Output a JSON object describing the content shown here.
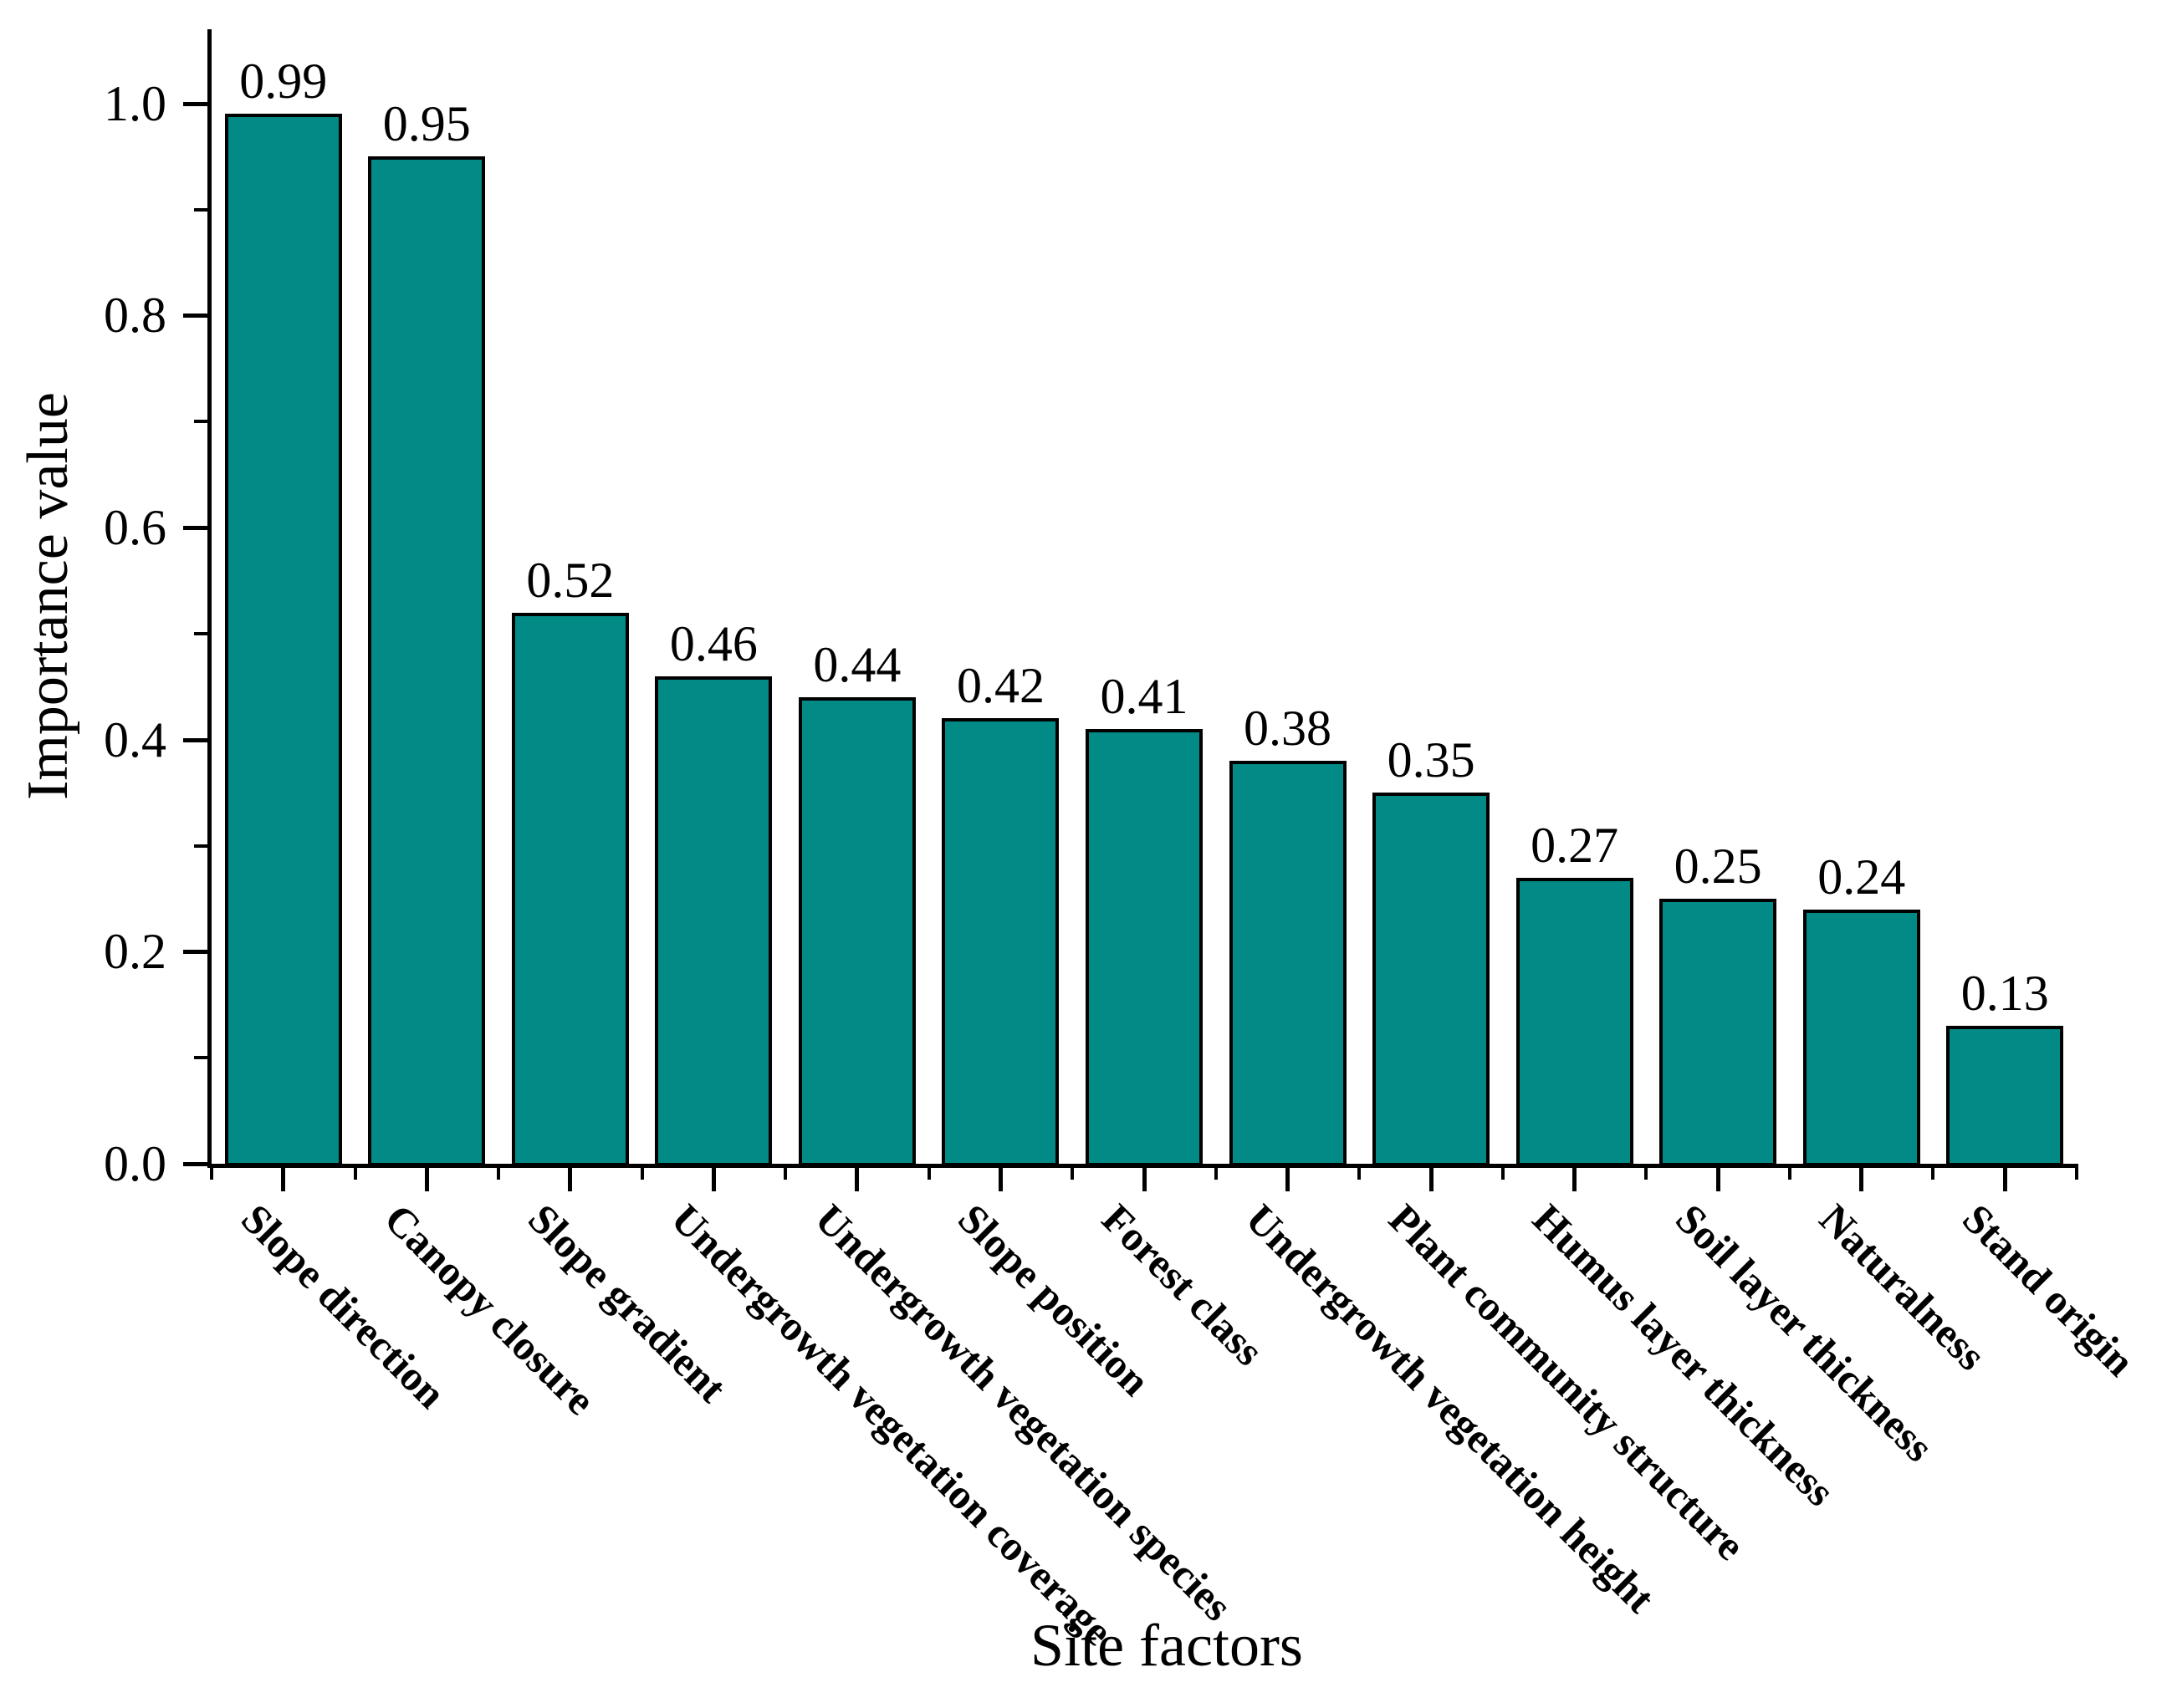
{
  "figure": {
    "background_color": "#ffffff",
    "text_color": "#000000"
  },
  "chart_data": {
    "type": "bar",
    "title": "",
    "xlabel": "Site factors",
    "ylabel": "Importance value",
    "categories": [
      "Slope direction",
      "Canopy closure",
      "Slope gradient",
      "Undergrowth vegetation coverage",
      "Undergrowth vegetation species",
      "Slope position",
      "Forest class",
      "Undergrowth vegetation height",
      "Plant community structure",
      "Humus layer thickness",
      "Soil layer thickness",
      "Naturalness",
      "Stand origin"
    ],
    "values": [
      0.99,
      0.95,
      0.52,
      0.46,
      0.44,
      0.42,
      0.41,
      0.38,
      0.35,
      0.27,
      0.25,
      0.24,
      0.13
    ],
    "value_labels": [
      "0.99",
      "0.95",
      "0.52",
      "0.46",
      "0.44",
      "0.42",
      "0.41",
      "0.38",
      "0.35",
      "0.27",
      "0.25",
      "0.24",
      "0.13"
    ],
    "y_major_ticks": [
      0.0,
      0.2,
      0.4,
      0.6,
      0.8,
      1.0
    ],
    "y_tick_labels": [
      "0.0",
      "0.2",
      "0.4",
      "0.6",
      "0.8",
      "1.0"
    ],
    "y_minor_ticks": [
      0.1,
      0.3,
      0.5,
      0.7,
      0.9
    ],
    "ylim": [
      0,
      1.07
    ],
    "grid": false,
    "legend": "none",
    "bar_color": "#028a86",
    "bar_border_color": "#000000",
    "axis_color": "#000000"
  }
}
